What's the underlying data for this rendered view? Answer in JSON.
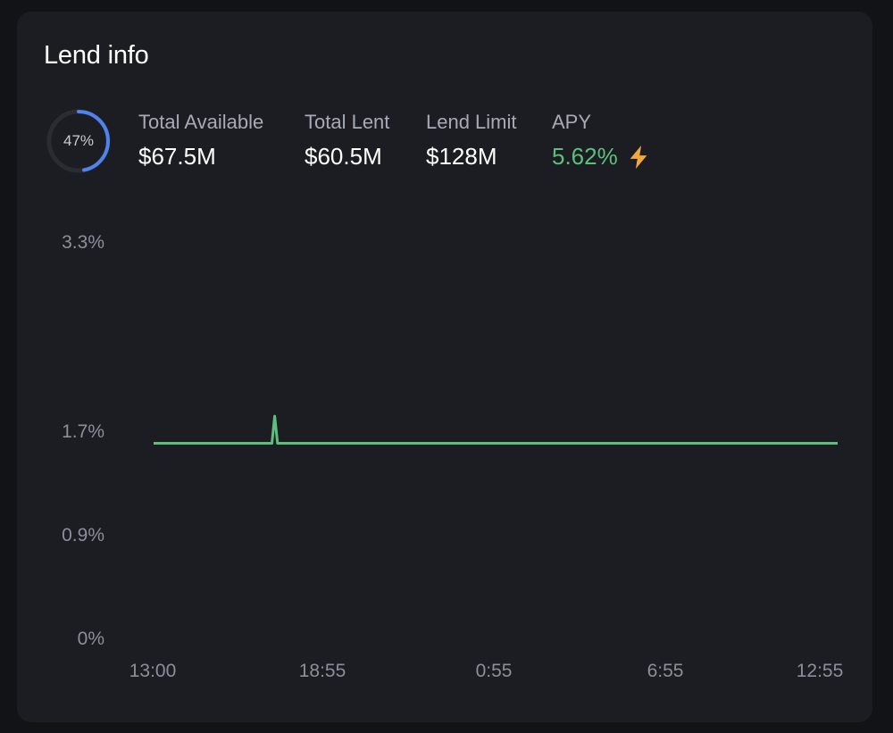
{
  "card": {
    "title": "Lend info"
  },
  "utilization": {
    "percent_label": "47%",
    "fraction": 0.47,
    "ring_color": "#4e83f0"
  },
  "stats": {
    "total_available": {
      "label": "Total Available",
      "value": "$67.5M"
    },
    "total_lent": {
      "label": "Total Lent",
      "value": "$60.5M"
    },
    "lend_limit": {
      "label": "Lend Limit",
      "value": "$128M"
    },
    "apy": {
      "label": "APY",
      "value": "5.62%",
      "color": "#5cc07b",
      "icon": "lightning-bolt-icon",
      "icon_color": "#f2a93b"
    }
  },
  "chart_data": {
    "type": "line",
    "x_tick_labels": [
      "13:00",
      "18:55",
      "0:55",
      "6:55",
      "12:55"
    ],
    "y_tick_labels": [
      "0%",
      "0.9%",
      "1.7%",
      "3.3%"
    ],
    "y_tick_values": [
      0,
      0.9,
      1.7,
      3.3
    ],
    "ylim": [
      0,
      3.3
    ],
    "line_color": "#5cc07b",
    "series": [
      {
        "x": [
          0,
          4.0,
          4.15,
          4.25,
          4.35,
          4.5,
          24
        ],
        "values": [
          1.6,
          1.6,
          1.6,
          1.82,
          1.6,
          1.6,
          1.6
        ]
      }
    ]
  }
}
